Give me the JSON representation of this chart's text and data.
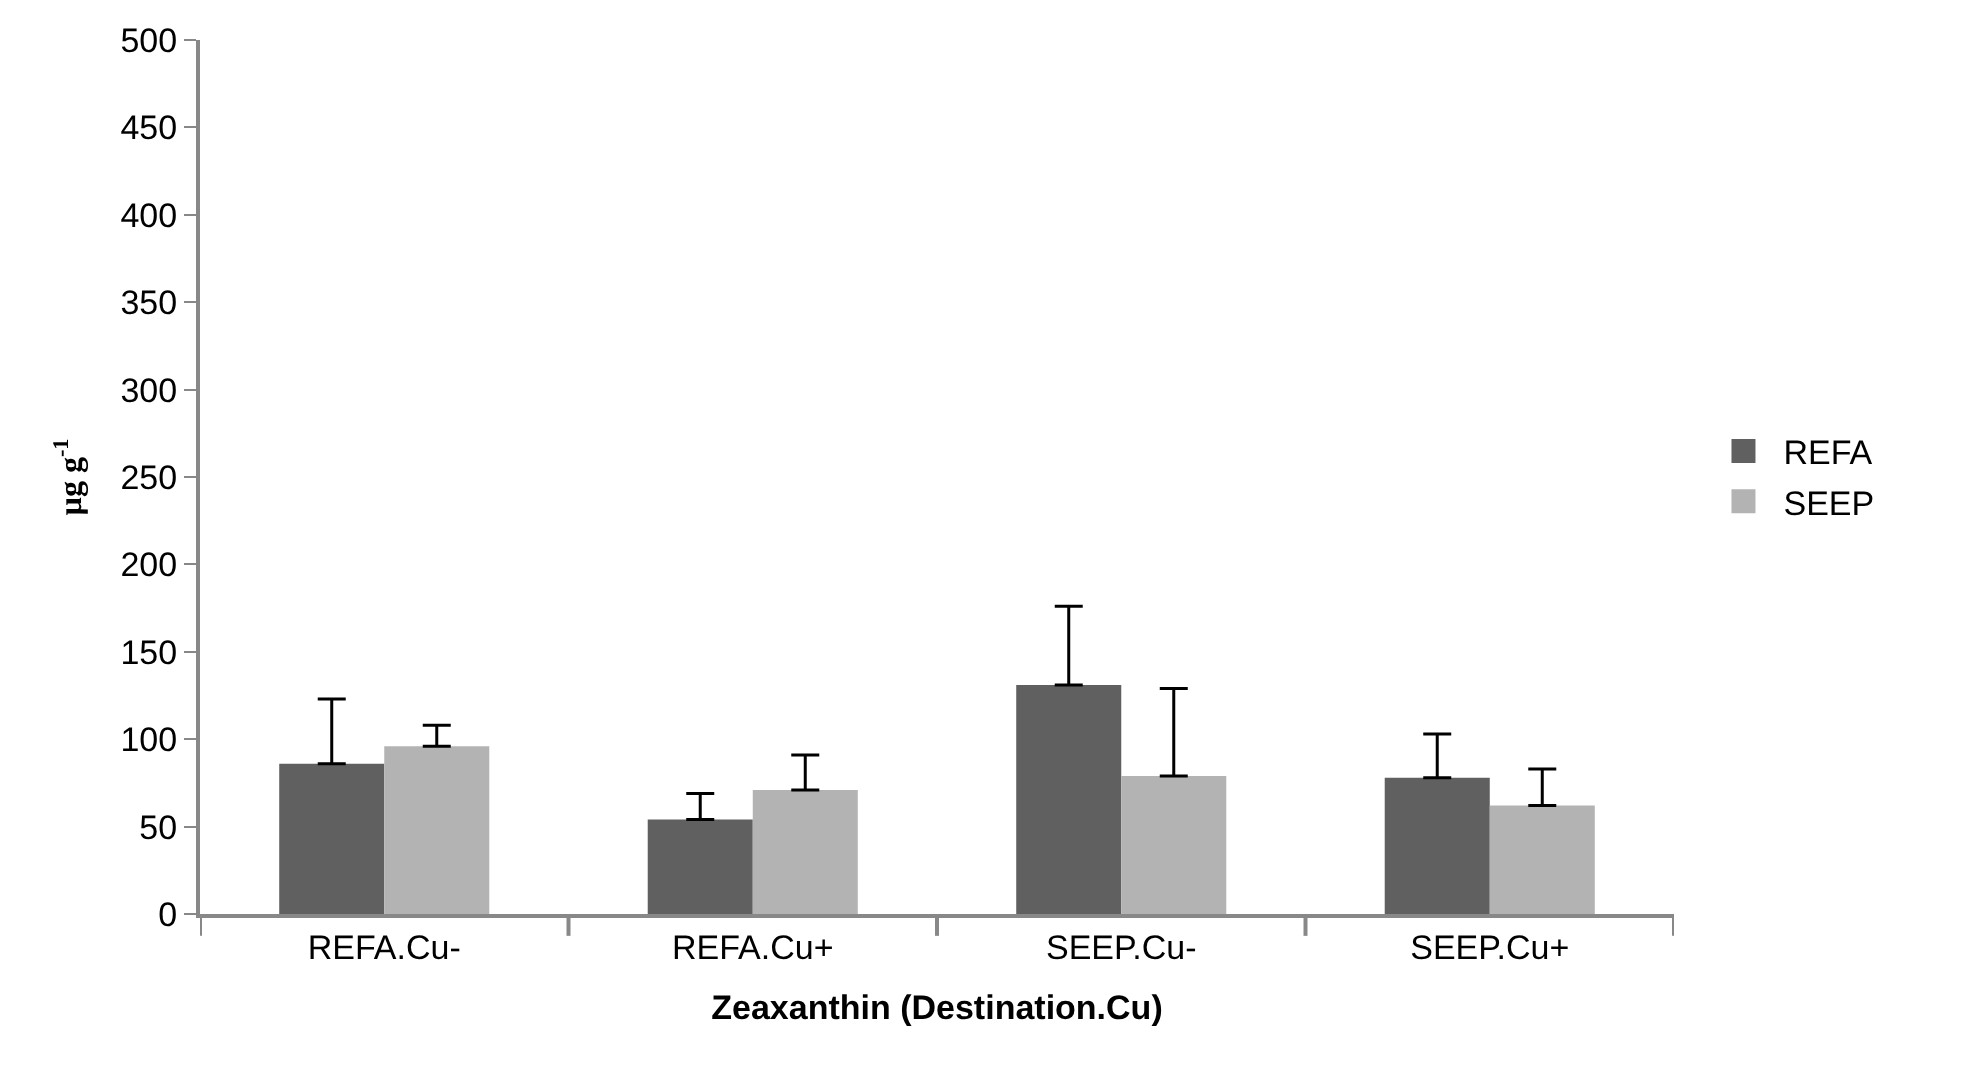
{
  "chart_data": {
    "type": "bar",
    "xlabel": "Zeaxanthin (Destination.Cu)",
    "ylabel": "µg g$^{-1}$",
    "categories": [
      "REFA.Cu-",
      "REFA.Cu+",
      "SEEP.Cu-",
      "SEEP.Cu+"
    ],
    "series": [
      {
        "name": "REFA",
        "color": "#606060",
        "values": [
          86,
          54,
          131,
          78
        ],
        "errors": [
          37,
          15,
          45,
          25
        ]
      },
      {
        "name": "SEEP",
        "color": "#b3b3b3",
        "values": [
          96,
          71,
          79,
          62
        ],
        "errors": [
          12,
          20,
          50,
          21
        ]
      }
    ],
    "ylim": [
      0,
      500
    ],
    "yticks": [
      0,
      50,
      100,
      150,
      200,
      250,
      300,
      350,
      400,
      450,
      500
    ],
    "legend": "right"
  }
}
